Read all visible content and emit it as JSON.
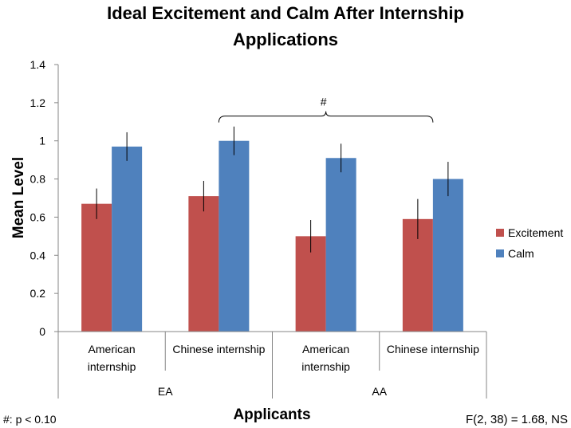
{
  "chart_data": {
    "type": "bar",
    "title": [
      "Ideal Excitement and Calm After Internship",
      "Applications"
    ],
    "xlabel": "Applicants",
    "ylabel": "Mean Level",
    "ylim": [
      0,
      1.4
    ],
    "yticks": [
      "0",
      "0.2",
      "0.4",
      "0.6",
      "0.8",
      "1",
      "1.2",
      "1.4"
    ],
    "categories": [
      [
        "American",
        "internship"
      ],
      [
        "Chinese internship"
      ],
      [
        "American",
        "internship"
      ],
      [
        "Chinese internship"
      ]
    ],
    "groups": [
      {
        "label": "EA",
        "span": [
          0,
          1
        ]
      },
      {
        "label": "AA",
        "span": [
          2,
          3
        ]
      }
    ],
    "series": [
      {
        "name": "Excitement",
        "color": "#C0504D",
        "values": [
          0.67,
          0.71,
          0.5,
          0.59
        ],
        "errors": [
          0.08,
          0.08,
          0.085,
          0.105
        ]
      },
      {
        "name": "Calm",
        "color": "#4F81BD",
        "values": [
          0.97,
          1.0,
          0.91,
          0.8
        ],
        "errors": [
          0.075,
          0.075,
          0.075,
          0.09
        ]
      }
    ],
    "annotation": {
      "text": "#",
      "from_category": 1,
      "to_category": 3,
      "at": 1.13
    },
    "grid": false,
    "legend": "right"
  },
  "footnote": "#: p < 0.10",
  "stat": "F(2, 38) = 1.68, NS"
}
